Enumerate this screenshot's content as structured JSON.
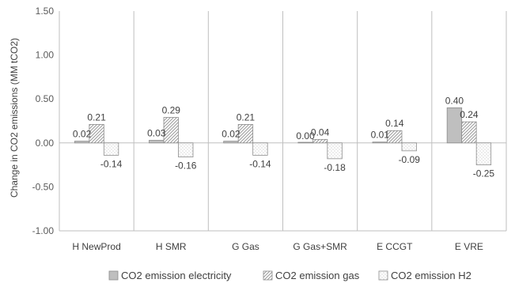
{
  "chart_data": {
    "type": "bar",
    "title": "",
    "xlabel": "",
    "ylabel": "Change in CO2 emissions  (MM tCO2)",
    "ylim": [
      -1.0,
      1.5
    ],
    "yticks": [
      -1.0,
      -0.5,
      0.0,
      0.5,
      1.0,
      1.5
    ],
    "ytick_labels": [
      "-1.00",
      "-0.50",
      "0.00",
      "0.50",
      "1.00",
      "1.50"
    ],
    "categories": [
      "H NewProd",
      "H SMR",
      "G Gas",
      "G Gas+SMR",
      "E CCGT",
      "E VRE"
    ],
    "series": [
      {
        "name": "CO2 emission electricity",
        "values": [
          0.02,
          0.03,
          0.02,
          0.0,
          0.01,
          0.4
        ],
        "labels": [
          "0.02",
          "0.03",
          "0.02",
          "0.00",
          "0.01",
          "0.40"
        ],
        "fill": "#bfbfbf",
        "pattern": "solid"
      },
      {
        "name": "CO2 emission gas",
        "values": [
          0.21,
          0.29,
          0.21,
          0.04,
          0.14,
          0.24
        ],
        "labels": [
          "0.21",
          "0.29",
          "0.21",
          "0.04",
          "0.14",
          "0.24"
        ],
        "fill": "#d9d9d9",
        "pattern": "diagonal"
      },
      {
        "name": "CO2 emission H2",
        "values": [
          -0.14,
          -0.16,
          -0.14,
          -0.18,
          -0.09,
          -0.25
        ],
        "labels": [
          "-0.14",
          "-0.16",
          "-0.14",
          "-0.18",
          "-0.09",
          "-0.25"
        ],
        "fill": "#ffffff",
        "pattern": "dotted"
      }
    ],
    "grid": false,
    "category_separators": true,
    "legend_position": "bottom",
    "colors": {
      "axis": "#bfbfbf",
      "edge": "#8c8c8c",
      "text": "#404040"
    }
  }
}
